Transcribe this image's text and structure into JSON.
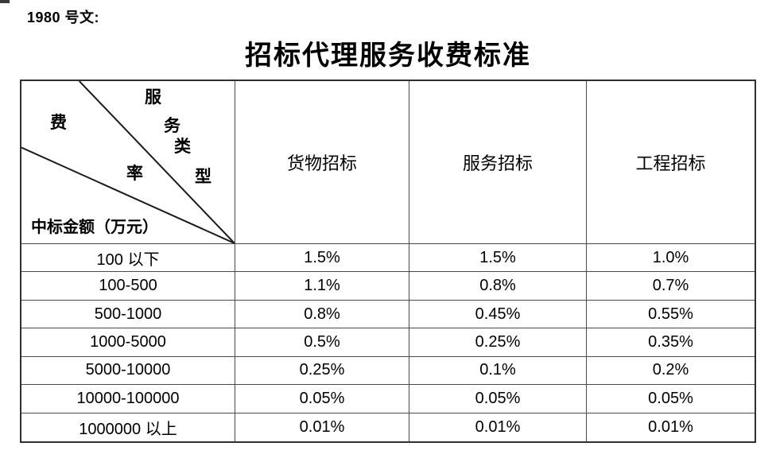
{
  "page": {
    "background": "#ffffff",
    "doc_label": "1980 号文:",
    "title": "招标代理服务收费标准"
  },
  "table": {
    "corner": {
      "service_type_chars": [
        "服",
        "务",
        "类",
        "型"
      ],
      "fee_rate_chars": [
        "费",
        "率"
      ],
      "amount_label": "中标金额（万元）"
    },
    "columns": [
      "货物招标",
      "服务招标",
      "工程招标"
    ],
    "rows": [
      {
        "label": "100 以下",
        "values": [
          "1.5%",
          "1.5%",
          "1.0%"
        ]
      },
      {
        "label": "100-500",
        "values": [
          "1.1%",
          "0.8%",
          "0.7%"
        ]
      },
      {
        "label": "500-1000",
        "values": [
          "0.8%",
          "0.45%",
          "0.55%"
        ]
      },
      {
        "label": "1000-5000",
        "values": [
          "0.5%",
          "0.25%",
          "0.35%"
        ]
      },
      {
        "label": "5000-10000",
        "values": [
          "0.25%",
          "0.1%",
          "0.2%"
        ]
      },
      {
        "label": "10000-100000",
        "values": [
          "0.05%",
          "0.05%",
          "0.05%"
        ]
      },
      {
        "label": "1000000 以上",
        "values": [
          "0.01%",
          "0.01%",
          "0.01%"
        ]
      }
    ],
    "colors": {
      "outer_border": "#2f2f2f",
      "inner_border": "#4a4a4a",
      "text": "#000000"
    }
  }
}
